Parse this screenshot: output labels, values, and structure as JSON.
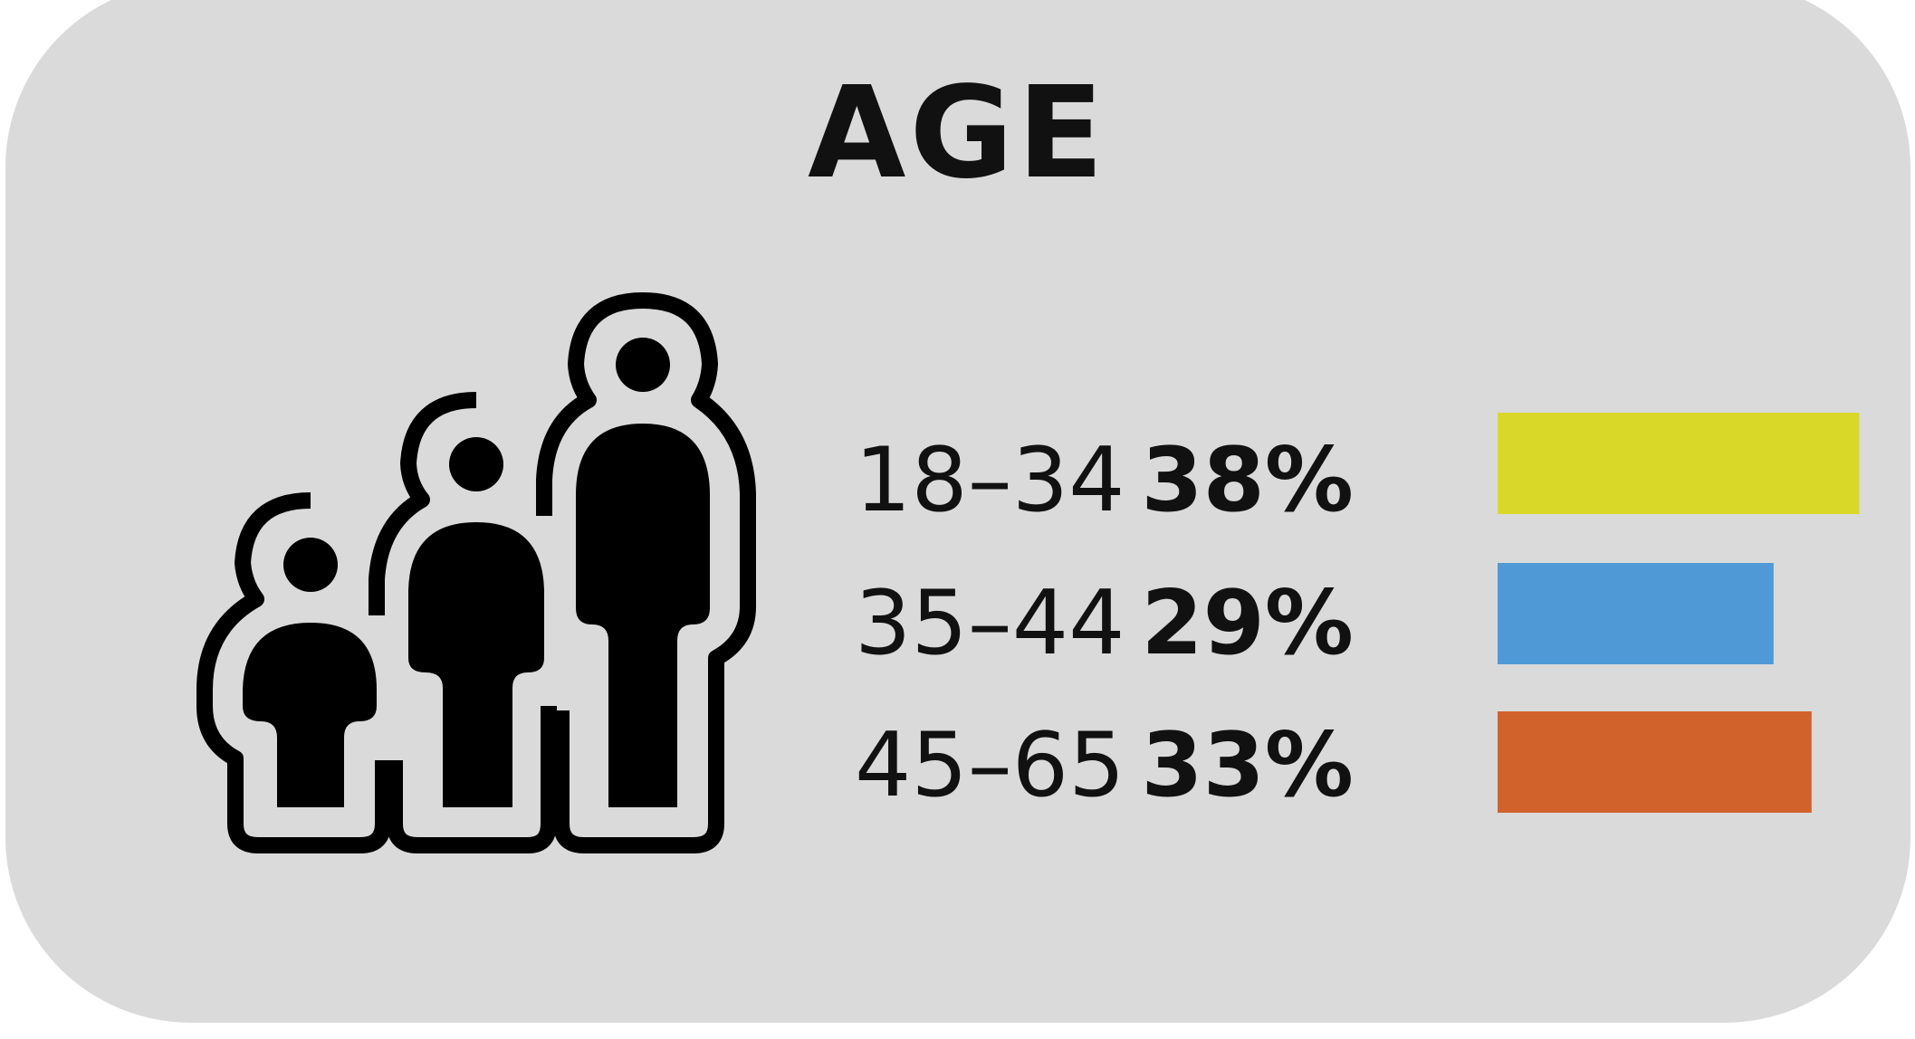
{
  "title": "AGE",
  "icon": "family-people-icon",
  "chart_data": {
    "type": "bar",
    "orientation": "horizontal",
    "categories": [
      "18–34",
      "35–44",
      "45–65"
    ],
    "values": [
      38,
      29,
      33
    ],
    "value_labels": [
      "38%",
      "29%",
      "33%"
    ],
    "colors": [
      "#d9d829",
      "#4f9ad6",
      "#d2622b"
    ],
    "title": "AGE",
    "xlabel": "",
    "ylabel": "",
    "grid": false,
    "legend": "none"
  }
}
